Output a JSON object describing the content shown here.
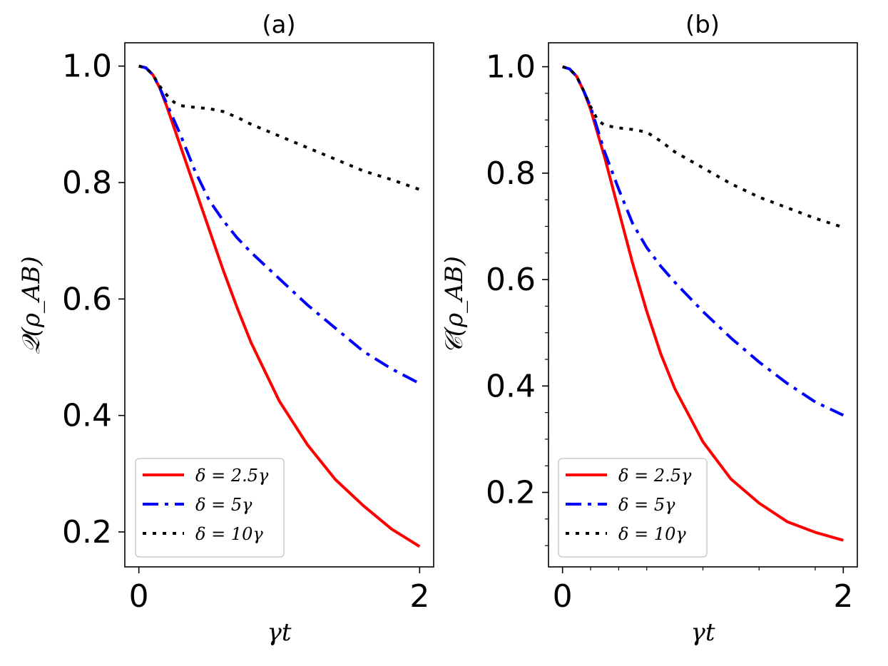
{
  "chart_data": [
    {
      "type": "line",
      "title": "(a)",
      "xlabel": "γt",
      "ylabel": "𝒬(ρ_AB)",
      "xlim": [
        -0.1,
        2.1
      ],
      "ylim": [
        0.14,
        1.04
      ],
      "xticks": [
        {
          "v": 0,
          "label": "0"
        },
        {
          "v": 2,
          "label": "2"
        }
      ],
      "yticks": [
        {
          "v": 0.2,
          "label": "0.2"
        },
        {
          "v": 0.4,
          "label": "0.4"
        },
        {
          "v": 0.6,
          "label": "0.6"
        },
        {
          "v": 0.8,
          "label": "0.8"
        },
        {
          "v": 1.0,
          "label": "1.0"
        }
      ],
      "minor_yticks": [],
      "minor_xticks": [],
      "grid": false,
      "legend_position": "lower-left",
      "series": [
        {
          "name": "δ = 2.5γ",
          "color": "#ff0000",
          "style": "solid",
          "x": [
            0,
            0.05,
            0.1,
            0.15,
            0.2,
            0.3,
            0.4,
            0.5,
            0.6,
            0.7,
            0.8,
            1.0,
            1.2,
            1.4,
            1.6,
            1.8,
            2.0
          ],
          "y": [
            1.0,
            0.997,
            0.985,
            0.962,
            0.93,
            0.86,
            0.79,
            0.72,
            0.65,
            0.585,
            0.525,
            0.425,
            0.35,
            0.29,
            0.245,
            0.205,
            0.175
          ]
        },
        {
          "name": "δ = 5γ",
          "color": "#0000ff",
          "style": "dashdot",
          "x": [
            0,
            0.05,
            0.1,
            0.15,
            0.2,
            0.3,
            0.4,
            0.5,
            0.6,
            0.7,
            0.8,
            1.0,
            1.2,
            1.4,
            1.6,
            1.8,
            2.0
          ],
          "y": [
            1.0,
            0.997,
            0.985,
            0.962,
            0.935,
            0.88,
            0.82,
            0.77,
            0.735,
            0.705,
            0.68,
            0.635,
            0.59,
            0.55,
            0.51,
            0.48,
            0.455
          ]
        },
        {
          "name": "δ = 10γ",
          "color": "#000000",
          "style": "dotted",
          "x": [
            0,
            0.05,
            0.1,
            0.15,
            0.2,
            0.25,
            0.3,
            0.4,
            0.5,
            0.6,
            0.7,
            0.8,
            1.0,
            1.2,
            1.4,
            1.6,
            1.8,
            2.0
          ],
          "y": [
            1.0,
            0.997,
            0.985,
            0.965,
            0.95,
            0.938,
            0.932,
            0.929,
            0.927,
            0.922,
            0.912,
            0.9,
            0.88,
            0.86,
            0.84,
            0.82,
            0.805,
            0.788
          ]
        }
      ]
    },
    {
      "type": "line",
      "title": "(b)",
      "xlabel": "γt",
      "ylabel": "𝒞(ρ_AB)",
      "xlim": [
        -0.1,
        2.1
      ],
      "ylim": [
        0.06,
        1.045
      ],
      "xticks": [
        {
          "v": 0,
          "label": "0"
        },
        {
          "v": 2,
          "label": "2"
        }
      ],
      "yticks": [
        {
          "v": 0.2,
          "label": "0.2"
        },
        {
          "v": 0.4,
          "label": "0.4"
        },
        {
          "v": 0.6,
          "label": "0.6"
        },
        {
          "v": 0.8,
          "label": "0.8"
        },
        {
          "v": 1.0,
          "label": "1.0"
        }
      ],
      "minor_yticks": [
        0.1,
        0.15,
        0.25,
        0.3,
        0.35,
        0.45,
        0.5,
        0.55,
        0.65,
        0.7,
        0.75,
        0.85,
        0.9,
        0.95
      ],
      "minor_xticks": [
        0.2,
        0.4,
        0.6,
        1.0,
        1.4,
        1.8
      ],
      "grid": false,
      "legend_position": "lower-left",
      "series": [
        {
          "name": "δ = 2.5γ",
          "color": "#ff0000",
          "style": "solid",
          "x": [
            0,
            0.05,
            0.1,
            0.15,
            0.2,
            0.3,
            0.4,
            0.5,
            0.6,
            0.7,
            0.8,
            1.0,
            1.2,
            1.4,
            1.6,
            1.8,
            2.0
          ],
          "y": [
            1.0,
            0.996,
            0.982,
            0.955,
            0.92,
            0.83,
            0.73,
            0.63,
            0.54,
            0.46,
            0.395,
            0.295,
            0.225,
            0.18,
            0.145,
            0.125,
            0.11
          ]
        },
        {
          "name": "δ = 5γ",
          "color": "#0000ff",
          "style": "dashdot",
          "x": [
            0,
            0.05,
            0.1,
            0.15,
            0.2,
            0.3,
            0.4,
            0.5,
            0.6,
            0.7,
            0.8,
            1.0,
            1.2,
            1.4,
            1.6,
            1.8,
            2.0
          ],
          "y": [
            1.0,
            0.996,
            0.982,
            0.955,
            0.925,
            0.84,
            0.77,
            0.705,
            0.66,
            0.625,
            0.595,
            0.54,
            0.49,
            0.445,
            0.405,
            0.37,
            0.345
          ]
        },
        {
          "name": "δ = 10γ",
          "color": "#000000",
          "style": "dotted",
          "x": [
            0,
            0.05,
            0.1,
            0.15,
            0.2,
            0.25,
            0.3,
            0.4,
            0.5,
            0.6,
            0.7,
            0.8,
            1.0,
            1.2,
            1.4,
            1.6,
            1.8,
            2.0
          ],
          "y": [
            1.0,
            0.996,
            0.982,
            0.955,
            0.925,
            0.9,
            0.89,
            0.885,
            0.882,
            0.877,
            0.86,
            0.84,
            0.81,
            0.78,
            0.755,
            0.735,
            0.715,
            0.698
          ]
        }
      ]
    }
  ]
}
